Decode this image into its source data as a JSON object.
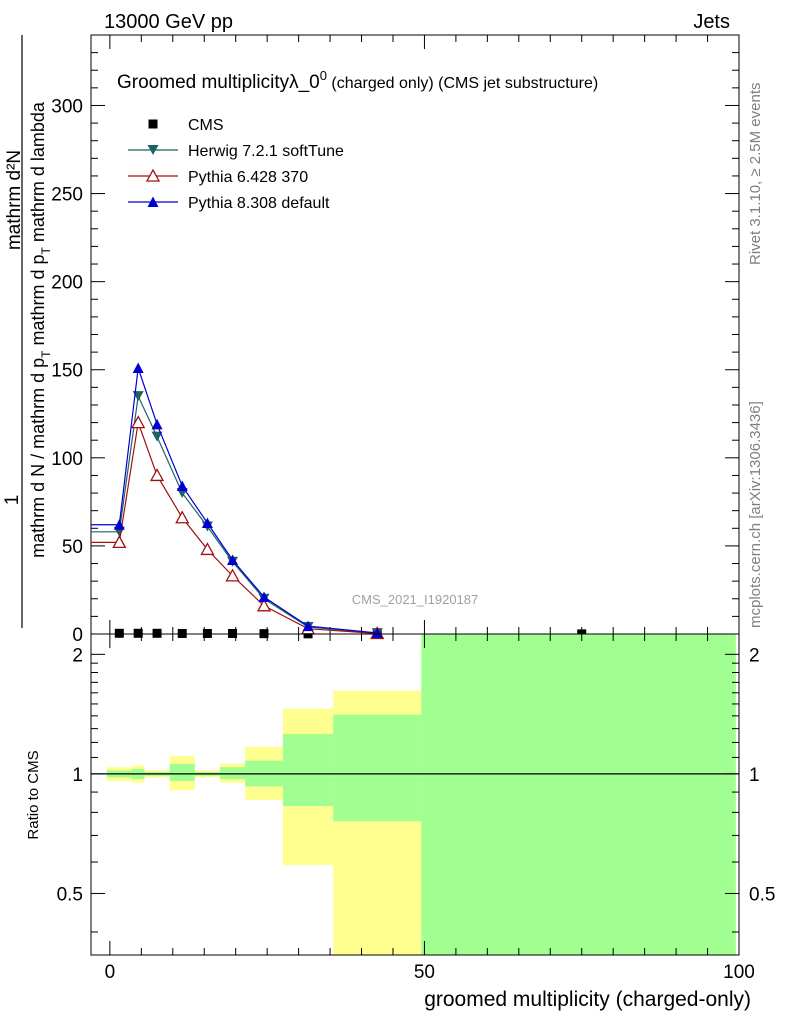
{
  "header": {
    "energy_label": "13000 GeV pp",
    "category_label": "Jets"
  },
  "plot_title": {
    "main": "Groomed multiplicity",
    "lambda": "λ_0",
    "superscript": "0",
    "rest": " (charged only) (CMS jet substructure)"
  },
  "side_labels": {
    "rivet": "Rivet 3.1.10, ≥ 2.5M events",
    "mcplots": "mcplots.cern.ch [arXiv:1306.3436]"
  },
  "watermark": "CMS_2021_I1920187",
  "ylabel_main": {
    "numerator": "mathrm d²N",
    "prefix": "1",
    "denominator": "mathrm d N / mathrm d p",
    "denominator_sub": "T",
    "denominator_tail": " mathrm d p",
    "denominator_sub2": "T",
    "denominator_end": " mathrm d lambda"
  },
  "ylabel_ratio": "Ratio to CMS",
  "xlabel": "groomed multiplicity (charged-only)",
  "colors": {
    "cms": "#000000",
    "herwig": "#1f6262",
    "pythia6": "#a01010",
    "pythia8": "#0000d0",
    "band_stat": "#a0ff90",
    "band_syst": "#ffff90"
  },
  "chart_data": [
    {
      "type": "line",
      "title": "Groomed multiplicity λ_0^0 (charged only) (CMS jet substructure)",
      "xlabel": "groomed multiplicity (charged-only)",
      "ylabel": "1/(dN/dpT) d²N/(dpT dλ)",
      "xlim": [
        -3,
        100
      ],
      "ylim": [
        0,
        340
      ],
      "yticks": [
        0,
        50,
        100,
        150,
        200,
        250,
        300
      ],
      "legend_position": "top-left",
      "series": [
        {
          "name": "CMS",
          "marker": "square",
          "x": [
            1.5,
            4.5,
            7.5,
            11.5,
            15.5,
            19.5,
            24.5,
            31.5,
            42.5,
            75
          ],
          "y": [
            0.4,
            0.4,
            0.4,
            0.3,
            0.3,
            0.3,
            0.2,
            0.1,
            0.05,
            0.05
          ]
        },
        {
          "name": "Herwig 7.2.1 softTune",
          "marker": "triangle-down",
          "x": [
            1.5,
            4.5,
            7.5,
            11.5,
            15.5,
            19.5,
            24.5,
            31.5,
            42.5
          ],
          "y": [
            58,
            135,
            112,
            80,
            61,
            41,
            20,
            4,
            0.5
          ]
        },
        {
          "name": "Pythia 6.428 370",
          "marker": "triangle-open",
          "x": [
            1.5,
            4.5,
            7.5,
            11.5,
            15.5,
            19.5,
            24.5,
            31.5,
            42.5
          ],
          "y": [
            52,
            120,
            90,
            66,
            48,
            33,
            16,
            3,
            0.3
          ]
        },
        {
          "name": "Pythia 8.308 default",
          "marker": "triangle-up",
          "x": [
            1.5,
            4.5,
            7.5,
            11.5,
            15.5,
            19.5,
            24.5,
            31.5,
            42.5
          ],
          "y": [
            62,
            151,
            119,
            84,
            63,
            42,
            21,
            4.5,
            0.6
          ]
        }
      ]
    },
    {
      "type": "area",
      "title": "Ratio to CMS",
      "ylabel": "Ratio to CMS",
      "xlabel": "groomed multiplicity (charged-only)",
      "xlim": [
        -3,
        100
      ],
      "ylim": [
        0.35,
        2.25
      ],
      "yticks": [
        0.5,
        1,
        2
      ],
      "xticks": [
        0,
        50,
        100
      ],
      "bins": [
        {
          "lo": -0.5,
          "hi": 3.5,
          "stat_lo": 0.98,
          "stat_hi": 1.02,
          "syst_lo": 0.96,
          "syst_hi": 1.04
        },
        {
          "lo": 3.5,
          "hi": 5.5,
          "stat_lo": 0.97,
          "stat_hi": 1.03,
          "syst_lo": 0.95,
          "syst_hi": 1.05
        },
        {
          "lo": 5.5,
          "hi": 9.5,
          "stat_lo": 0.99,
          "stat_hi": 1.01,
          "syst_lo": 0.98,
          "syst_hi": 1.02
        },
        {
          "lo": 9.5,
          "hi": 13.5,
          "stat_lo": 0.96,
          "stat_hi": 1.06,
          "syst_lo": 0.91,
          "syst_hi": 1.11
        },
        {
          "lo": 13.5,
          "hi": 17.5,
          "stat_lo": 0.99,
          "stat_hi": 1.01,
          "syst_lo": 0.98,
          "syst_hi": 1.02
        },
        {
          "lo": 17.5,
          "hi": 21.5,
          "stat_lo": 0.97,
          "stat_hi": 1.04,
          "syst_lo": 0.95,
          "syst_hi": 1.06
        },
        {
          "lo": 21.5,
          "hi": 27.5,
          "stat_lo": 0.93,
          "stat_hi": 1.08,
          "syst_lo": 0.86,
          "syst_hi": 1.17
        },
        {
          "lo": 27.5,
          "hi": 35.5,
          "stat_lo": 0.83,
          "stat_hi": 1.26,
          "syst_lo": 0.59,
          "syst_hi": 1.46
        },
        {
          "lo": 35.5,
          "hi": 49.5,
          "stat_lo": 0.76,
          "stat_hi": 1.41,
          "syst_lo": 0.35,
          "syst_hi": 1.62
        },
        {
          "lo": 49.5,
          "hi": 99.5,
          "stat_lo": 0.35,
          "stat_hi": 2.25,
          "syst_lo": 0.35,
          "syst_hi": 2.25
        }
      ],
      "reference_line": 1
    }
  ]
}
